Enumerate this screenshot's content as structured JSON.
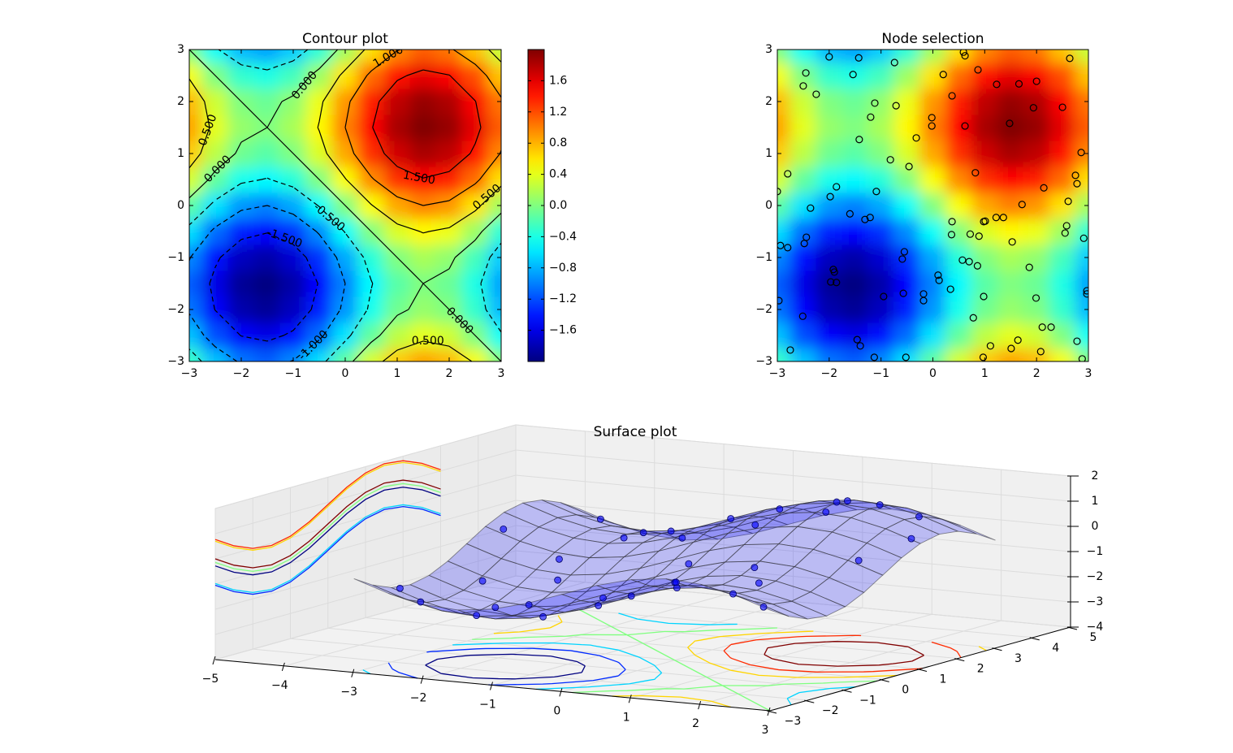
{
  "chart_data": [
    {
      "type": "heatmap",
      "title": "Contour plot",
      "x": [
        -3,
        -2.5,
        -2,
        -1.5,
        -1,
        -0.5,
        0,
        0.5,
        1,
        1.5,
        2,
        2.5,
        3
      ],
      "y": [
        -3,
        -2.5,
        -2,
        -1.5,
        -1,
        -0.5,
        0,
        0.5,
        1,
        1.5,
        2,
        2.5,
        3
      ],
      "z": [
        [
          -0.28,
          -0.74,
          -1.05,
          -1.14,
          -0.98,
          -0.62,
          -0.14,
          0.34,
          0.7,
          0.86,
          0.77,
          0.46,
          0
        ],
        [
          -0.74,
          -1.2,
          -1.51,
          -1.6,
          -1.44,
          -1.08,
          -0.6,
          -0.12,
          0.24,
          0.4,
          0.31,
          0,
          -0.46
        ],
        [
          -1.05,
          -1.51,
          -1.82,
          -1.91,
          -1.75,
          -1.39,
          -0.91,
          -0.43,
          -0.07,
          0.09,
          0,
          -0.31,
          -0.77
        ],
        [
          -1.14,
          -1.6,
          -1.91,
          -2,
          -1.84,
          -1.48,
          -1,
          -0.52,
          -0.16,
          0,
          -0.09,
          -0.4,
          -0.86
        ],
        [
          -0.98,
          -1.44,
          -1.75,
          -1.84,
          -1.68,
          -1.32,
          -0.84,
          -0.36,
          0,
          0.16,
          0.07,
          -0.24,
          -0.7
        ],
        [
          -0.62,
          -1.08,
          -1.39,
          -1.48,
          -1.32,
          -0.96,
          -0.48,
          0,
          0.36,
          0.52,
          0.43,
          0.12,
          -0.34
        ],
        [
          -0.14,
          -0.6,
          -0.91,
          -1,
          -0.84,
          -0.48,
          0,
          0.48,
          0.84,
          1,
          0.91,
          0.6,
          0.14
        ],
        [
          0.34,
          -0.12,
          -0.43,
          -0.52,
          -0.36,
          0,
          0.48,
          0.96,
          1.32,
          1.48,
          1.39,
          1.08,
          0.62
        ],
        [
          0.7,
          0.24,
          -0.07,
          -0.16,
          0,
          0.36,
          0.84,
          1.32,
          1.68,
          1.84,
          1.75,
          1.44,
          0.98
        ],
        [
          0.86,
          0.4,
          0.09,
          0,
          0.16,
          0.52,
          1,
          1.48,
          1.84,
          2,
          1.91,
          1.6,
          1.14
        ],
        [
          0.77,
          0.31,
          0,
          -0.09,
          0.07,
          0.43,
          0.91,
          1.39,
          1.75,
          1.91,
          1.82,
          1.51,
          1.05
        ],
        [
          0.46,
          0,
          -0.31,
          -0.4,
          -0.24,
          0.12,
          0.6,
          1.08,
          1.44,
          1.6,
          1.51,
          1.2,
          0.74
        ],
        [
          0,
          -0.46,
          -0.77,
          -0.86,
          -0.7,
          -0.34,
          0.14,
          0.62,
          0.98,
          1.14,
          1.05,
          0.74,
          0.28
        ]
      ],
      "colormap": "jet",
      "clim": [
        -2,
        2
      ],
      "xlim": [
        -3,
        3
      ],
      "ylim": [
        -3,
        3
      ],
      "xticks": [
        {
          "value": -3,
          "label": "−3"
        },
        {
          "value": -2,
          "label": "−2"
        },
        {
          "value": -1,
          "label": "−1"
        },
        0,
        1,
        2,
        3
      ],
      "yticks": [
        {
          "value": -3,
          "label": "−3"
        },
        {
          "value": -2,
          "label": "−2"
        },
        {
          "value": -1,
          "label": "−1"
        },
        0,
        1,
        2,
        3
      ],
      "levels": [
        -1.5,
        -1,
        -0.5,
        0,
        0.5,
        1,
        1.5
      ],
      "contour_labels": [
        {
          "value": 1,
          "label": "1.000"
        },
        {
          "value": 0,
          "label": "0.000"
        },
        {
          "value": 0.5,
          "label": "0.500"
        },
        {
          "value": 0,
          "label": "0.000"
        },
        {
          "value": 1.5,
          "label": "1.500"
        },
        {
          "value": 0.5,
          "label": "0.500"
        },
        {
          "value": -0.5,
          "label": "-0.500"
        },
        {
          "value": -1.5,
          "label": "-1.500"
        },
        {
          "value": 0,
          "label": "0.000"
        },
        {
          "value": -1,
          "label": "-1.000"
        },
        {
          "value": 0.5,
          "label": "0.500"
        }
      ],
      "colorbar_ticks": [
        {
          "value": -1.6,
          "label": "−1.6"
        },
        {
          "value": -1.2,
          "label": "−1.2"
        },
        {
          "value": -0.8,
          "label": "−0.8"
        },
        {
          "value": -0.4,
          "label": "−0.4"
        },
        {
          "value": 0,
          "label": "0.0"
        },
        0.4,
        0.8,
        1.2,
        1.6
      ]
    },
    {
      "type": "heatmap",
      "title": "Node selection",
      "x": [
        -3,
        -2.5,
        -2,
        -1.5,
        -1,
        -0.5,
        0,
        0.5,
        1,
        1.5,
        2,
        2.5,
        3
      ],
      "y": [
        -3,
        -2.5,
        -2,
        -1.5,
        -1,
        -0.5,
        0,
        0.5,
        1,
        1.5,
        2,
        2.5,
        3
      ],
      "z": [
        [
          -0.28,
          -0.74,
          -1.05,
          -1.14,
          -0.98,
          -0.62,
          -0.14,
          0.34,
          0.7,
          0.86,
          0.77,
          0.46,
          0
        ],
        [
          -0.74,
          -1.2,
          -1.51,
          -1.6,
          -1.44,
          -1.08,
          -0.6,
          -0.12,
          0.24,
          0.4,
          0.31,
          0,
          -0.46
        ],
        [
          -1.05,
          -1.51,
          -1.82,
          -1.91,
          -1.75,
          -1.39,
          -0.91,
          -0.43,
          -0.07,
          0.09,
          0,
          -0.31,
          -0.77
        ],
        [
          -1.14,
          -1.6,
          -1.91,
          -2,
          -1.84,
          -1.48,
          -1,
          -0.52,
          -0.16,
          0,
          -0.09,
          -0.4,
          -0.86
        ],
        [
          -0.98,
          -1.44,
          -1.75,
          -1.84,
          -1.68,
          -1.32,
          -0.84,
          -0.36,
          0,
          0.16,
          0.07,
          -0.24,
          -0.7
        ],
        [
          -0.62,
          -1.08,
          -1.39,
          -1.48,
          -1.32,
          -0.96,
          -0.48,
          0,
          0.36,
          0.52,
          0.43,
          0.12,
          -0.34
        ],
        [
          -0.14,
          -0.6,
          -0.91,
          -1,
          -0.84,
          -0.48,
          0,
          0.48,
          0.84,
          1,
          0.91,
          0.6,
          0.14
        ],
        [
          0.34,
          -0.12,
          -0.43,
          -0.52,
          -0.36,
          0,
          0.48,
          0.96,
          1.32,
          1.48,
          1.39,
          1.08,
          0.62
        ],
        [
          0.7,
          0.24,
          -0.07,
          -0.16,
          0,
          0.36,
          0.84,
          1.32,
          1.68,
          1.84,
          1.75,
          1.44,
          0.98
        ],
        [
          0.86,
          0.4,
          0.09,
          0,
          0.16,
          0.52,
          1,
          1.48,
          1.84,
          2,
          1.91,
          1.6,
          1.14
        ],
        [
          0.77,
          0.31,
          0,
          -0.09,
          0.07,
          0.43,
          0.91,
          1.39,
          1.75,
          1.91,
          1.82,
          1.51,
          1.05
        ],
        [
          0.46,
          0,
          -0.31,
          -0.4,
          -0.24,
          0.12,
          0.6,
          1.08,
          1.44,
          1.6,
          1.51,
          1.2,
          0.74
        ],
        [
          0,
          -0.46,
          -0.77,
          -0.86,
          -0.7,
          -0.34,
          0.14,
          0.62,
          0.98,
          1.14,
          1.05,
          0.74,
          0.28
        ]
      ],
      "colormap": "jet",
      "clim": [
        -2,
        2
      ],
      "xlim": [
        -3,
        3
      ],
      "ylim": [
        -3,
        3
      ],
      "xticks": [
        {
          "value": -3,
          "label": "−3"
        },
        {
          "value": -2,
          "label": "−2"
        },
        {
          "value": -1,
          "label": "−1"
        },
        0,
        1,
        2,
        3
      ],
      "yticks": [
        {
          "value": -3,
          "label": "−3"
        },
        {
          "value": -2,
          "label": "−2"
        },
        {
          "value": -1,
          "label": "−1"
        },
        0,
        1,
        2,
        3
      ],
      "point_color": "#000000",
      "points": {
        "x": [
          -2.0,
          -1.43,
          -0.74,
          -2.45,
          -1.54,
          -2.5,
          -2.25,
          -1.12,
          -0.71,
          -1.2,
          -1.42,
          -0.32,
          -0.82,
          -0.46,
          -2.8,
          -1.86,
          -1.98,
          -1.09,
          -2.36,
          -3.0,
          -1.6,
          -1.21,
          -1.31,
          -2.44,
          -2.48,
          -2.94,
          -2.8,
          -0.55,
          -0.59,
          -1.92,
          -1.9,
          -1.97,
          -1.86,
          -0.95,
          -0.57,
          -0.18,
          -0.18,
          0.1,
          0.12,
          0.34,
          -2.97,
          -2.51,
          -2.75,
          -1.46,
          -1.4,
          -1.13,
          -0.52,
          0.59,
          0.62,
          0.2,
          0.87,
          0.37,
          -0.02,
          -0.02,
          0.62,
          1.23,
          1.66,
          2.0,
          2.64,
          1.94,
          2.5,
          1.48,
          2.86,
          0.82,
          2.75,
          2.78,
          2.14,
          2.61,
          1.72,
          0.37,
          0.36,
          0.72,
          0.89,
          0.98,
          1.01,
          1.22,
          1.36,
          1.53,
          2.55,
          2.58,
          2.91,
          0.57,
          0.7,
          0.86,
          1.86,
          0.98,
          1.99,
          2.97,
          2.97,
          0.78,
          2.11,
          2.28,
          2.78,
          1.64,
          1.51,
          1.11,
          0.97,
          2.08,
          2.88
        ],
        "y": [
          2.86,
          2.84,
          2.75,
          2.55,
          2.52,
          2.3,
          2.14,
          1.97,
          1.92,
          1.7,
          1.27,
          1.3,
          0.88,
          0.75,
          0.61,
          0.36,
          0.17,
          0.27,
          -0.05,
          0.27,
          -0.16,
          -0.23,
          -0.27,
          -0.61,
          -0.73,
          -0.77,
          -0.81,
          -0.89,
          -1.03,
          -1.23,
          -1.28,
          -1.47,
          -1.48,
          -1.75,
          -1.69,
          -1.7,
          -1.83,
          -1.34,
          -1.44,
          -1.61,
          -1.83,
          -2.13,
          -2.78,
          -2.58,
          -2.7,
          -2.92,
          -2.92,
          2.95,
          2.88,
          2.52,
          2.61,
          2.11,
          1.69,
          1.53,
          1.53,
          2.33,
          2.34,
          2.39,
          2.83,
          1.88,
          1.89,
          1.58,
          1.02,
          0.63,
          0.58,
          0.42,
          0.34,
          0.08,
          0.02,
          -0.31,
          -0.56,
          -0.55,
          -0.59,
          -0.31,
          -0.3,
          -0.23,
          -0.23,
          -0.7,
          -0.53,
          -0.39,
          -0.63,
          -1.05,
          -1.08,
          -1.16,
          -1.19,
          -1.75,
          -1.78,
          -1.64,
          -1.7,
          -2.16,
          -2.34,
          -2.34,
          -2.61,
          -2.59,
          -2.75,
          -2.7,
          -2.92,
          -2.81,
          -2.95
        ]
      }
    },
    {
      "type": "surface3d",
      "title": "Surface plot",
      "color": "#0000ff",
      "x": [
        -3,
        -2.5,
        -2,
        -1.5,
        -1,
        -0.5,
        0,
        0.5,
        1,
        1.5,
        2,
        2.5,
        3
      ],
      "y": [
        -3,
        -2.5,
        -2,
        -1.5,
        -1,
        -0.5,
        0,
        0.5,
        1,
        1.5,
        2,
        2.5,
        3
      ],
      "z": [
        [
          -0.28,
          -0.74,
          -1.05,
          -1.14,
          -0.98,
          -0.62,
          -0.14,
          0.34,
          0.7,
          0.86,
          0.77,
          0.46,
          0
        ],
        [
          -0.74,
          -1.2,
          -1.51,
          -1.6,
          -1.44,
          -1.08,
          -0.6,
          -0.12,
          0.24,
          0.4,
          0.31,
          0,
          -0.46
        ],
        [
          -1.05,
          -1.51,
          -1.82,
          -1.91,
          -1.75,
          -1.39,
          -0.91,
          -0.43,
          -0.07,
          0.09,
          0,
          -0.31,
          -0.77
        ],
        [
          -1.14,
          -1.6,
          -1.91,
          -2,
          -1.84,
          -1.48,
          -1,
          -0.52,
          -0.16,
          0,
          -0.09,
          -0.4,
          -0.86
        ],
        [
          -0.98,
          -1.44,
          -1.75,
          -1.84,
          -1.68,
          -1.32,
          -0.84,
          -0.36,
          0,
          0.16,
          0.07,
          -0.24,
          -0.7
        ],
        [
          -0.62,
          -1.08,
          -1.39,
          -1.48,
          -1.32,
          -0.96,
          -0.48,
          0,
          0.36,
          0.52,
          0.43,
          0.12,
          -0.34
        ],
        [
          -0.14,
          -0.6,
          -0.91,
          -1,
          -0.84,
          -0.48,
          0,
          0.48,
          0.84,
          1,
          0.91,
          0.6,
          0.14
        ],
        [
          0.34,
          -0.12,
          -0.43,
          -0.52,
          -0.36,
          0,
          0.48,
          0.96,
          1.32,
          1.48,
          1.39,
          1.08,
          0.62
        ],
        [
          0.7,
          0.24,
          -0.07,
          -0.16,
          0,
          0.36,
          0.84,
          1.32,
          1.68,
          1.84,
          1.75,
          1.44,
          0.98
        ],
        [
          0.86,
          0.4,
          0.09,
          0,
          0.16,
          0.52,
          1,
          1.48,
          1.84,
          2,
          1.91,
          1.6,
          1.14
        ],
        [
          0.77,
          0.31,
          0,
          -0.09,
          0.07,
          0.43,
          0.91,
          1.39,
          1.75,
          1.91,
          1.82,
          1.51,
          1.05
        ],
        [
          0.46,
          0,
          -0.31,
          -0.4,
          -0.24,
          0.12,
          0.6,
          1.08,
          1.44,
          1.6,
          1.51,
          1.2,
          0.74
        ],
        [
          0,
          -0.46,
          -0.77,
          -0.86,
          -0.7,
          -0.34,
          0.14,
          0.62,
          0.98,
          1.14,
          1.05,
          0.74,
          0.28
        ]
      ],
      "levels": [
        -1.5,
        -1,
        -0.5,
        0,
        0.5,
        1,
        1.5
      ],
      "xlim": [
        -5,
        3
      ],
      "ylim": [
        -3,
        5
      ],
      "zlim": [
        -4,
        2
      ],
      "xticks": [
        {
          "value": -5,
          "label": "−5"
        },
        {
          "value": -4,
          "label": "−4"
        },
        {
          "value": -3,
          "label": "−3"
        },
        {
          "value": -2,
          "label": "−2"
        },
        {
          "value": -1,
          "label": "−1"
        },
        0,
        1,
        2,
        3
      ],
      "yticks": [
        {
          "value": -3,
          "label": "−3"
        },
        {
          "value": -2,
          "label": "−2"
        },
        {
          "value": -1,
          "label": "−1"
        },
        0,
        1,
        2,
        3,
        4,
        5
      ],
      "zticks": [
        {
          "value": -4,
          "label": "−4"
        },
        {
          "value": -3,
          "label": "−3"
        },
        {
          "value": -2,
          "label": "−2"
        },
        {
          "value": -1,
          "label": "−1"
        },
        0,
        1,
        2
      ],
      "points": {
        "x": [
          -2.0,
          -1.43,
          -2.45,
          -1.12,
          -1.42,
          -2.8,
          -1.86,
          -1.6,
          -2.44,
          -0.55,
          -1.92,
          -0.95,
          0.1,
          -2.51,
          -1.46,
          -0.52,
          0.62,
          0.37,
          -0.02,
          1.23,
          1.94,
          2.5,
          1.48,
          2.86,
          0.82,
          2.61,
          0.37,
          1.53,
          0.57,
          1.86,
          0.98,
          2.11,
          1.51,
          2.88,
          -2.97,
          -0.18
        ],
        "y": [
          2.86,
          2.84,
          2.55,
          1.97,
          1.27,
          0.61,
          0.36,
          -0.16,
          -0.61,
          -0.89,
          -1.23,
          -1.75,
          -1.34,
          -2.13,
          -2.58,
          -2.92,
          2.88,
          2.11,
          1.53,
          2.33,
          1.88,
          1.89,
          1.58,
          1.02,
          0.63,
          0.08,
          -0.31,
          -0.7,
          -1.05,
          -1.19,
          -1.75,
          -2.34,
          -2.75,
          -2.95,
          -1.83,
          -1.7
        ],
        "z": [
          -0.63,
          -0.69,
          -0.08,
          0.02,
          -0.03,
          0.24,
          -0.61,
          -1.16,
          -1.22,
          -1.3,
          -1.88,
          -1.79,
          -0.87,
          -1.44,
          -1.52,
          -0.72,
          0.84,
          1.22,
          0.98,
          1.67,
          1.88,
          1.55,
          2.0,
          1.13,
          1.32,
          0.59,
          0.05,
          0.36,
          -0.33,
          0.03,
          -0.15,
          0.14,
          0.62,
          0.07,
          -1.14,
          -1.17
        ]
      }
    }
  ]
}
